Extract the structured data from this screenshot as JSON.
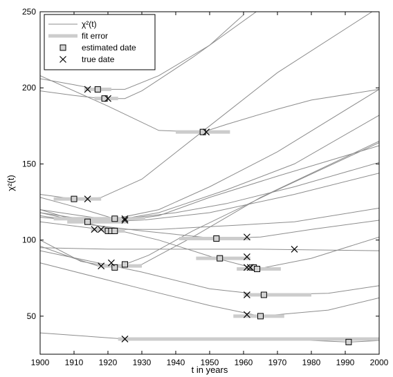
{
  "chart_data": {
    "type": "line",
    "title": "",
    "xlabel": "t in years",
    "ylabel": "χ²(t)",
    "xlim": [
      1900,
      2000
    ],
    "ylim": [
      25,
      250
    ],
    "xticks": [
      1900,
      1910,
      1920,
      1930,
      1940,
      1950,
      1960,
      1970,
      1980,
      1990,
      2000
    ],
    "yticks": [
      50,
      100,
      150,
      200,
      250
    ],
    "grid": false,
    "legend_position": "top-left",
    "legend": [
      {
        "key": "chi",
        "label": "χ²(t)",
        "marker": "line"
      },
      {
        "key": "fit",
        "label": "fit error",
        "marker": "thick-line"
      },
      {
        "key": "est",
        "label": "estimated date",
        "marker": "square"
      },
      {
        "key": "true",
        "label": "true date",
        "marker": "x"
      }
    ],
    "colors": {
      "curve": "#8c8c8c",
      "fit_error": "#cccccc",
      "marker": "#000000",
      "square_fill": "#d3d3d3"
    },
    "curves": [
      {
        "x": [
          1900,
          1910,
          1917,
          1925,
          1935,
          1950,
          1960
        ],
        "y": [
          206,
          202,
          199,
          199,
          208,
          228,
          248
        ]
      },
      {
        "x": [
          1900,
          1910,
          1918,
          1925,
          1930,
          1945,
          1965
        ],
        "y": [
          198,
          195,
          193,
          193,
          198,
          220,
          252
        ]
      },
      {
        "x": [
          1900,
          1920,
          1935,
          1948,
          1955,
          1970,
          1980,
          2000
        ],
        "y": [
          208,
          188,
          172,
          171,
          176,
          186,
          192,
          199
        ]
      },
      {
        "x": [
          1900,
          1910,
          1914,
          1918,
          1930,
          1950,
          1970,
          2000
        ],
        "y": [
          130,
          127,
          127,
          128,
          140,
          175,
          210,
          253
        ]
      },
      {
        "x": [
          1900,
          1910,
          1922,
          1935,
          1950,
          1970,
          2000
        ],
        "y": [
          128,
          122,
          114,
          120,
          135,
          158,
          199
        ]
      },
      {
        "x": [
          1900,
          1912,
          1922,
          1935,
          1955,
          1975,
          2000
        ],
        "y": [
          120,
          116,
          113,
          118,
          133,
          150,
          182
        ]
      },
      {
        "x": [
          1900,
          1915,
          1925,
          1935,
          1950,
          1970,
          2000
        ],
        "y": [
          116,
          111,
          113,
          116,
          128,
          142,
          162
        ]
      },
      {
        "x": [
          1900,
          1915,
          1925,
          1940,
          1955,
          1975,
          2000
        ],
        "y": [
          118,
          113,
          114,
          118,
          124,
          135,
          151
        ]
      },
      {
        "x": [
          1900,
          1915,
          1930,
          1950,
          1975,
          2000
        ],
        "y": [
          115,
          112,
          113,
          118,
          130,
          144
        ]
      },
      {
        "x": [
          1900,
          1918,
          1935,
          1960,
          1975,
          2000
        ],
        "y": [
          112,
          107,
          107,
          110,
          112,
          121
        ]
      },
      {
        "x": [
          1900,
          1915,
          1930,
          1952,
          1965,
          1980,
          2000
        ],
        "y": [
          120,
          110,
          106,
          101,
          102,
          107,
          113
        ]
      },
      {
        "x": [
          1900,
          1920,
          1935,
          1952,
          1964,
          1980,
          2000
        ],
        "y": [
          118,
          108,
          100,
          88,
          81,
          88,
          102
        ]
      },
      {
        "x": [
          1900,
          1920,
          1940,
          1965,
          2000
        ],
        "y": [
          95,
          94,
          94,
          94,
          93
        ]
      },
      {
        "x": [
          1900,
          1912,
          1922,
          1930,
          1945,
          1965,
          2000
        ],
        "y": [
          100,
          86,
          82,
          84,
          102,
          128,
          165
        ]
      },
      {
        "x": [
          1900,
          1910,
          1917,
          1925,
          1932,
          1945,
          1970,
          2000
        ],
        "y": [
          96,
          88,
          83,
          84,
          90,
          106,
          133,
          164
        ]
      },
      {
        "x": [
          1900,
          1930,
          1950,
          1966,
          1985,
          2000
        ],
        "y": [
          93,
          79,
          68,
          64,
          65,
          70
        ]
      },
      {
        "x": [
          1900,
          1930,
          1950,
          1965,
          1985,
          2000
        ],
        "y": [
          85,
          68,
          57,
          50,
          54,
          62
        ]
      },
      {
        "x": [
          1900,
          1925,
          1950,
          1970,
          1991,
          2000
        ],
        "y": [
          39,
          35,
          35,
          35,
          33,
          34
        ]
      }
    ],
    "fit_error": [
      {
        "x1": 1913,
        "x2": 1921,
        "y": 199
      },
      {
        "x1": 1916,
        "x2": 1923,
        "y": 193
      },
      {
        "x1": 1940,
        "x2": 1956,
        "y": 171
      },
      {
        "x1": 1904,
        "x2": 1918,
        "y": 127
      },
      {
        "x1": 1904,
        "x2": 1931,
        "y": 114
      },
      {
        "x1": 1908,
        "x2": 1926,
        "y": 112
      },
      {
        "x1": 1915,
        "x2": 1923,
        "y": 107
      },
      {
        "x1": 1919,
        "x2": 1925,
        "y": 106
      },
      {
        "x1": 1941,
        "x2": 1962,
        "y": 101
      },
      {
        "x1": 1946,
        "x2": 1962,
        "y": 88
      },
      {
        "x1": 1958,
        "x2": 1971,
        "y": 81
      },
      {
        "x1": 1918,
        "x2": 1930,
        "y": 83
      },
      {
        "x1": 1960,
        "x2": 1980,
        "y": 64
      },
      {
        "x1": 1957,
        "x2": 1972,
        "y": 50
      },
      {
        "x1": 1923,
        "x2": 2000,
        "y": 35
      }
    ],
    "estimated_dates": [
      {
        "x": 1917,
        "y": 199
      },
      {
        "x": 1919,
        "y": 193
      },
      {
        "x": 1948,
        "y": 171
      },
      {
        "x": 1910,
        "y": 127
      },
      {
        "x": 1922,
        "y": 114
      },
      {
        "x": 1914,
        "y": 112
      },
      {
        "x": 1920,
        "y": 106
      },
      {
        "x": 1921,
        "y": 106
      },
      {
        "x": 1922,
        "y": 106
      },
      {
        "x": 1952,
        "y": 101
      },
      {
        "x": 1953,
        "y": 88
      },
      {
        "x": 1963,
        "y": 82
      },
      {
        "x": 1964,
        "y": 81
      },
      {
        "x": 1922,
        "y": 82
      },
      {
        "x": 1925,
        "y": 84
      },
      {
        "x": 1966,
        "y": 64
      },
      {
        "x": 1965,
        "y": 50
      },
      {
        "x": 1991,
        "y": 33
      }
    ],
    "true_dates": [
      {
        "x": 1914,
        "y": 199
      },
      {
        "x": 1920,
        "y": 193
      },
      {
        "x": 1949,
        "y": 171
      },
      {
        "x": 1914,
        "y": 127
      },
      {
        "x": 1925,
        "y": 114
      },
      {
        "x": 1925,
        "y": 113
      },
      {
        "x": 1916,
        "y": 107
      },
      {
        "x": 1918,
        "y": 107
      },
      {
        "x": 1961,
        "y": 102
      },
      {
        "x": 1961,
        "y": 89
      },
      {
        "x": 1975,
        "y": 94
      },
      {
        "x": 1961,
        "y": 82
      },
      {
        "x": 1962,
        "y": 82
      },
      {
        "x": 1918,
        "y": 83
      },
      {
        "x": 1921,
        "y": 85
      },
      {
        "x": 1961,
        "y": 64
      },
      {
        "x": 1961,
        "y": 51
      },
      {
        "x": 1925,
        "y": 35
      }
    ]
  }
}
